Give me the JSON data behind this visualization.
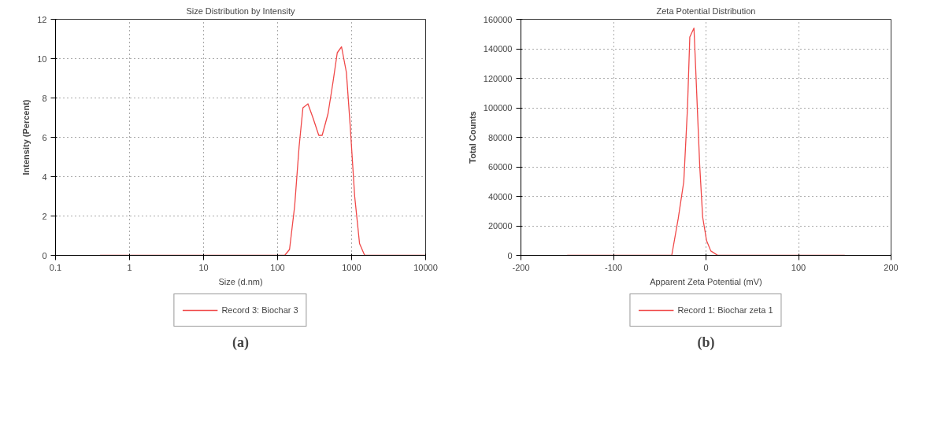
{
  "chart_data": [
    {
      "type": "line",
      "title": "Size Distribution by Intensity",
      "xlabel": "Size (d.nm)",
      "ylabel": "Intensity (Percent)",
      "log": "x",
      "xlim": [
        0.1,
        10000
      ],
      "xticks": [
        0.1,
        1,
        10,
        100,
        1000,
        10000
      ],
      "ylim": [
        0,
        12
      ],
      "yticks": [
        0,
        2,
        4,
        6,
        8,
        10,
        12
      ],
      "grid": true,
      "legend": "bottom",
      "series": [
        {
          "name": "Record 3: Biochar 3",
          "color": "#f04848",
          "x": [
            0.4,
            125,
            145,
            170,
            195,
            220,
            257,
            300,
            360,
            400,
            480,
            560,
            640,
            731,
            850,
            960,
            1100,
            1280,
            1500,
            10000
          ],
          "values": [
            0,
            0,
            0.3,
            2.5,
            5.5,
            7.5,
            7.7,
            7.0,
            6.1,
            6.1,
            7.2,
            8.8,
            10.3,
            10.6,
            9.3,
            6.5,
            3.0,
            0.6,
            0,
            0
          ]
        }
      ],
      "annotations": [
        "(a)"
      ]
    },
    {
      "type": "line",
      "title": "Zeta Potential Distribution",
      "xlabel": "Apparent Zeta Potential (mV)",
      "ylabel": "Total Counts",
      "xlim": [
        -200,
        200
      ],
      "xticks": [
        -200,
        -100,
        0,
        100,
        200
      ],
      "ylim": [
        0,
        160000
      ],
      "yticks": [
        0,
        20000,
        40000,
        60000,
        80000,
        100000,
        120000,
        140000,
        160000
      ],
      "grid": true,
      "legend": "bottom",
      "series": [
        {
          "name": "Record 1: Biochar zeta 1",
          "color": "#f04848",
          "x": [
            -150,
            -37,
            -30,
            -24,
            -20,
            -17.5,
            -13,
            -10.7,
            -6.8,
            -3.6,
            0.6,
            5.2,
            12.7,
            150
          ],
          "values": [
            0,
            0,
            25000,
            50000,
            100000,
            148000,
            154000,
            120000,
            61000,
            26000,
            10000,
            3000,
            0,
            0
          ]
        }
      ],
      "annotations": [
        "(b)"
      ]
    }
  ]
}
